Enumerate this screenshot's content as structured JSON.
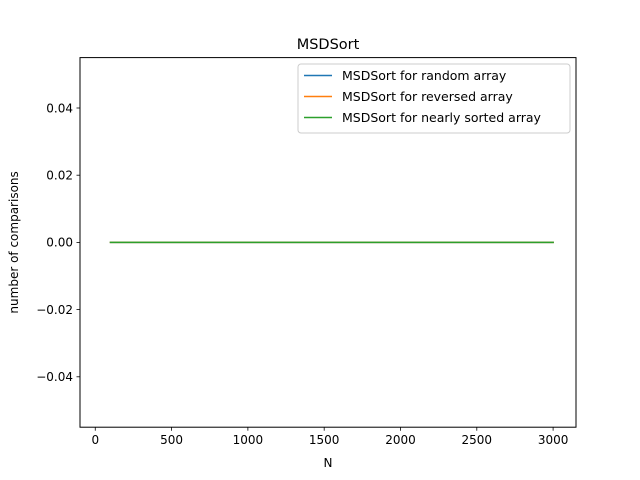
{
  "chart_data": {
    "type": "line",
    "title": "MSDSort",
    "xlabel": "N",
    "ylabel": "number of comparisons",
    "xlim": [
      -100,
      3150
    ],
    "ylim": [
      -0.055,
      0.055
    ],
    "x_ticks": [
      0,
      500,
      1000,
      1500,
      2000,
      2500,
      3000
    ],
    "x_tick_labels": [
      "0",
      "500",
      "1000",
      "1500",
      "2000",
      "2500",
      "3000"
    ],
    "y_ticks": [
      -0.04,
      -0.02,
      0.0,
      0.02,
      0.04
    ],
    "y_tick_labels": [
      "−0.04",
      "−0.02",
      "0.00",
      "0.02",
      "0.04"
    ],
    "grid": false,
    "legend_position": "upper-right",
    "series": [
      {
        "name": "MSDSort for random array",
        "color": "#1f77b4",
        "x": [
          100,
          3000
        ],
        "y": [
          0,
          0
        ]
      },
      {
        "name": "MSDSort for reversed array",
        "color": "#ff7f0e",
        "x": [
          100,
          3000
        ],
        "y": [
          0,
          0
        ]
      },
      {
        "name": "MSDSort for nearly sorted array",
        "color": "#2ca02c",
        "x": [
          100,
          3000
        ],
        "y": [
          0,
          0
        ]
      }
    ]
  }
}
